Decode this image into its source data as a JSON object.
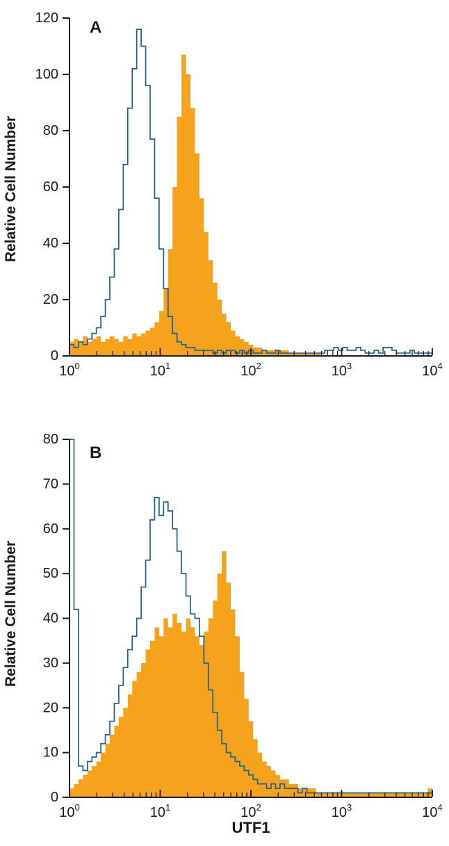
{
  "figure": {
    "background": "#ffffff"
  },
  "axis_style": {
    "line_color": "#1a1a1a",
    "tick_color": "#1a1a1a"
  },
  "chart_data": [
    {
      "type": "histogram",
      "panel_label": "A",
      "ylabel": "Relative Cell Number",
      "xlabel": "",
      "x_scale": "log10",
      "xlim": [
        1,
        10000
      ],
      "xticks": [
        "10^0",
        "10^1",
        "10^2",
        "10^3",
        "10^4"
      ],
      "ylim": [
        0,
        120
      ],
      "yticks": [
        0,
        20,
        40,
        60,
        80,
        100,
        120
      ],
      "grid": false,
      "legend": "none",
      "log10_x_start": 0,
      "log10_x_step": 0.05,
      "series": [
        {
          "name": "filled-orange-histogram",
          "style": "filled",
          "color": "#F5A31C",
          "values": [
            5,
            6,
            5,
            7,
            5,
            6,
            7,
            5,
            6,
            7,
            6,
            5,
            7,
            6,
            8,
            7,
            8,
            9,
            10,
            12,
            16,
            24,
            38,
            60,
            85,
            107,
            100,
            88,
            72,
            56,
            44,
            34,
            26,
            20,
            15,
            12,
            9,
            7,
            6,
            5,
            4,
            3,
            3,
            2,
            2,
            2,
            2,
            2,
            2,
            1,
            1,
            1,
            1,
            1,
            1,
            1,
            0,
            0,
            0,
            0,
            0,
            0,
            0,
            0,
            0,
            0,
            0,
            0,
            0,
            0,
            0,
            0,
            0,
            0,
            0,
            0,
            0,
            0,
            0,
            0,
            0
          ]
        },
        {
          "name": "open-blue-histogram",
          "style": "open",
          "color": "#1F5F8F",
          "values": [
            4,
            3,
            5,
            4,
            6,
            8,
            10,
            14,
            20,
            28,
            38,
            52,
            68,
            88,
            102,
            116,
            110,
            96,
            77,
            56,
            38,
            24,
            14,
            8,
            5,
            4,
            3,
            3,
            2,
            2,
            2,
            2,
            1,
            2,
            1,
            2,
            2,
            1,
            2,
            1,
            2,
            1,
            1,
            2,
            1,
            1,
            2,
            1,
            1,
            1,
            1,
            1,
            1,
            1,
            1,
            1,
            1,
            2,
            2,
            3,
            2,
            3,
            2,
            2,
            3,
            2,
            1,
            1,
            2,
            1,
            3,
            3,
            2,
            1,
            1,
            1,
            2,
            1,
            1,
            1,
            1
          ]
        }
      ]
    },
    {
      "type": "histogram",
      "panel_label": "B",
      "ylabel": "Relative Cell Number",
      "xlabel": "UTF1",
      "x_scale": "log10",
      "xlim": [
        1,
        10000
      ],
      "xticks": [
        "10^0",
        "10^1",
        "10^2",
        "10^3",
        "10^4"
      ],
      "ylim": [
        0,
        80
      ],
      "yticks": [
        0,
        10,
        20,
        30,
        40,
        50,
        60,
        70,
        80
      ],
      "grid": false,
      "legend": "none",
      "log10_x_start": 0,
      "log10_x_step": 0.05,
      "series": [
        {
          "name": "filled-orange-histogram",
          "style": "filled",
          "color": "#F5A31C",
          "values": [
            2,
            3,
            4,
            5,
            6,
            7,
            8,
            10,
            12,
            14,
            16,
            18,
            20,
            23,
            26,
            28,
            30,
            33,
            35,
            38,
            36,
            40,
            38,
            41,
            39,
            37,
            40,
            38,
            36,
            34,
            37,
            40,
            44,
            50,
            55,
            48,
            42,
            36,
            28,
            22,
            17,
            13,
            10,
            8,
            7,
            6,
            5,
            4,
            4,
            3,
            3,
            2,
            2,
            2,
            2,
            1,
            1,
            1,
            1,
            1,
            1,
            1,
            1,
            1,
            1,
            1,
            1,
            1,
            1,
            1,
            1,
            1,
            1,
            1,
            1,
            1,
            1,
            1,
            1,
            1,
            2
          ]
        },
        {
          "name": "open-blue-histogram",
          "style": "open",
          "color": "#1F5F8F",
          "values": [
            80,
            42,
            7,
            6,
            8,
            9,
            10,
            12,
            14,
            17,
            21,
            25,
            29,
            33,
            36,
            40,
            47,
            53,
            62,
            67,
            63,
            66,
            64,
            60,
            55,
            50,
            45,
            41,
            40,
            36,
            30,
            24,
            19,
            15,
            12,
            10,
            9,
            8,
            7,
            6,
            5,
            4,
            3,
            3,
            2,
            3,
            2,
            3,
            2,
            2,
            2,
            1,
            2,
            1,
            1,
            1,
            1,
            1,
            1,
            1,
            1,
            1,
            1,
            1,
            1,
            1,
            1,
            1,
            1,
            1,
            1,
            1,
            1,
            1,
            1,
            1,
            1,
            1,
            1,
            1,
            1
          ]
        }
      ]
    }
  ]
}
